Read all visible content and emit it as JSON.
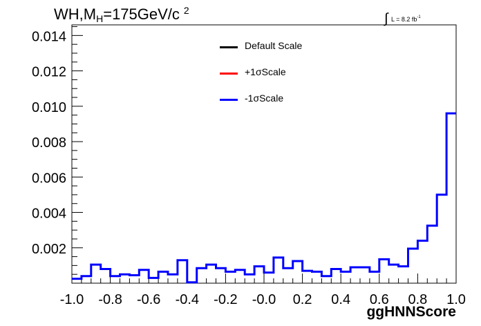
{
  "title": {
    "prefix": "WH,M",
    "sub": "H",
    "middle": "=175GeV/c",
    "sup": "2"
  },
  "luminosity": {
    "symbol": "∫",
    "text": "L = 8.2 fb",
    "exp": "-1"
  },
  "legend": [
    {
      "label": "Default Scale",
      "color": "#000000"
    },
    {
      "label": "+1σScale",
      "color": "#ff0000"
    },
    {
      "label": "-1σScale",
      "color": "#0000ff"
    }
  ],
  "chart_data": {
    "type": "line",
    "xlabel": "ggHNNScore",
    "xlim": [
      -1.0,
      1.0
    ],
    "ylim": [
      0.0,
      0.0146
    ],
    "xticks": [
      -1.0,
      -0.8,
      -0.6,
      -0.4,
      -0.2,
      0.0,
      0.2,
      0.4,
      0.6,
      0.8,
      1.0
    ],
    "xtick_labels": [
      "-1.0",
      "-0.8",
      "-0.6",
      "-0.4",
      "-0.2",
      "-0.0",
      "0.2",
      "0.4",
      "0.6",
      "0.8",
      "1.0"
    ],
    "yticks": [
      0.002,
      0.004,
      0.006,
      0.008,
      0.01,
      0.012,
      0.014
    ],
    "ytick_labels": [
      "0.002",
      "0.004",
      "0.006",
      "0.008",
      "0.010",
      "0.012",
      "0.014"
    ],
    "bin_width": 0.05,
    "bin_edges_start": -1.0,
    "series": [
      {
        "name": "-1σScale",
        "color": "#0000ff",
        "values": [
          0.00025,
          0.0004,
          0.00105,
          0.0008,
          0.0004,
          0.0005,
          0.00045,
          0.00075,
          0.0003,
          0.00065,
          0.0005,
          0.0013,
          5e-05,
          0.00085,
          0.00105,
          0.00085,
          0.00065,
          0.00075,
          0.0005,
          0.00095,
          0.0006,
          0.00145,
          0.00085,
          0.00125,
          0.0007,
          0.00065,
          0.0004,
          0.0008,
          0.00065,
          0.0009,
          0.0009,
          0.00065,
          0.00135,
          0.00105,
          0.00095,
          0.00195,
          0.0024,
          0.00325,
          0.005,
          0.0096
        ]
      }
    ]
  }
}
